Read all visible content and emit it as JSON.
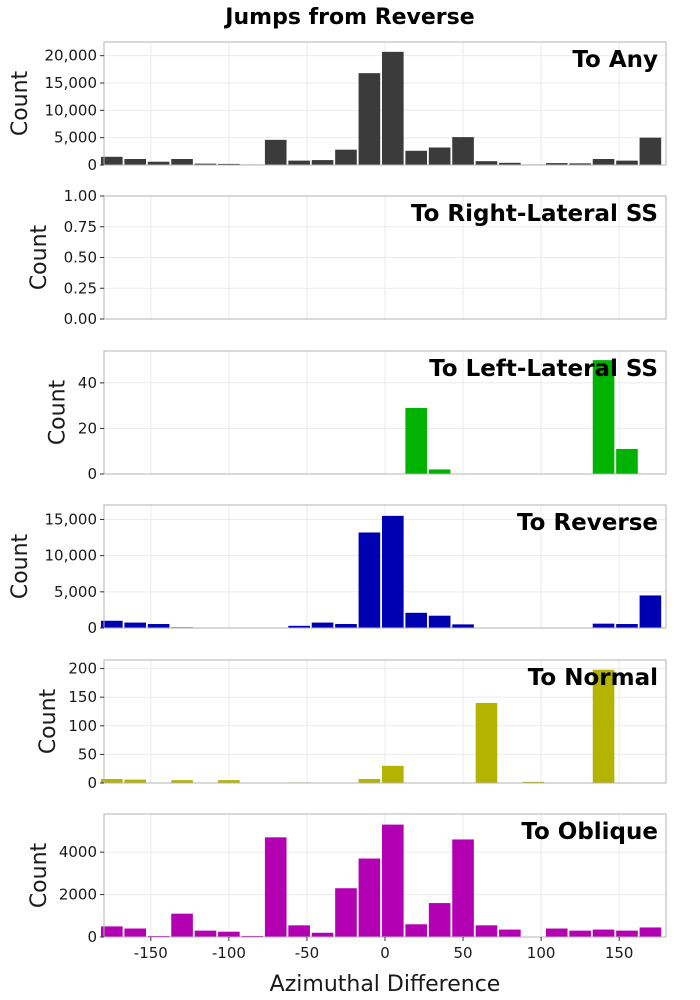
{
  "title": "Jumps from Reverse",
  "xlabel": "Azimuthal Difference",
  "chart_data": {
    "type": "bar",
    "xlim": [
      -180,
      180
    ],
    "x_ticks": [
      -150,
      -100,
      -50,
      0,
      50,
      100,
      150
    ],
    "x_tick_labels": [
      "-150",
      "-100",
      "-50",
      "0",
      "50",
      "100",
      "150"
    ],
    "bin_centers": [
      -175,
      -160,
      -145,
      -130,
      -115,
      -100,
      -85,
      -70,
      -55,
      -40,
      -25,
      -10,
      5,
      20,
      35,
      50,
      65,
      80,
      95,
      110,
      125,
      140,
      155,
      170
    ],
    "panels": [
      {
        "title": "To Any",
        "ylabel": "Count",
        "color": "#3b3b3b",
        "ylim": [
          0,
          22500
        ],
        "y_ticks": [
          0,
          5000,
          10000,
          15000,
          20000
        ],
        "y_tick_labels": [
          "0",
          "5,000",
          "10,000",
          "15,000",
          "20,000"
        ],
        "values": [
          1500,
          1100,
          600,
          1100,
          250,
          200,
          100,
          4600,
          800,
          900,
          2800,
          16800,
          20700,
          2600,
          3200,
          5100,
          700,
          400,
          100,
          350,
          300,
          1100,
          800,
          5000
        ]
      },
      {
        "title": "To Right-Lateral SS",
        "ylabel": "Count",
        "color": "#808080",
        "ylim": [
          0,
          1
        ],
        "y_ticks": [
          0,
          0.25,
          0.5,
          0.75,
          1
        ],
        "y_tick_labels": [
          "0.00",
          "0.25",
          "0.50",
          "0.75",
          "1.00"
        ],
        "values": [
          0,
          0,
          0,
          0,
          0,
          0,
          0,
          0,
          0,
          0,
          0,
          0,
          0,
          0,
          0,
          0,
          0,
          0,
          0,
          0,
          0,
          0,
          0,
          0
        ]
      },
      {
        "title": "To Left-Lateral SS",
        "ylabel": "Count",
        "color": "#00b300",
        "ylim": [
          0,
          54
        ],
        "y_ticks": [
          0,
          20,
          40
        ],
        "y_tick_labels": [
          "0",
          "20",
          "40"
        ],
        "values": [
          0,
          0,
          0,
          0,
          0,
          0,
          0,
          0,
          0,
          0,
          0,
          0,
          0,
          29,
          2,
          0,
          0,
          0,
          0,
          0,
          0,
          50,
          11,
          0
        ]
      },
      {
        "title": "To Reverse",
        "ylabel": "Count",
        "color": "#0000b3",
        "ylim": [
          0,
          17000
        ],
        "y_ticks": [
          0,
          5000,
          10000,
          15000
        ],
        "y_tick_labels": [
          "0",
          "5,000",
          "10,000",
          "15,000"
        ],
        "values": [
          1000,
          750,
          550,
          100,
          50,
          0,
          50,
          0,
          300,
          750,
          550,
          13200,
          15500,
          2100,
          1700,
          500,
          0,
          50,
          50,
          0,
          50,
          600,
          550,
          4500
        ]
      },
      {
        "title": "To Normal",
        "ylabel": "Count",
        "color": "#b3b300",
        "ylim": [
          0,
          215
        ],
        "y_ticks": [
          0,
          50,
          100,
          150,
          200
        ],
        "y_tick_labels": [
          "0",
          "50",
          "100",
          "150",
          "200"
        ],
        "values": [
          7,
          6,
          0,
          5,
          0,
          5,
          0,
          0,
          1,
          0,
          0,
          7,
          30,
          0,
          0,
          0,
          140,
          0,
          2,
          0,
          0,
          198,
          0,
          0
        ]
      },
      {
        "title": "To Oblique",
        "ylabel": "Count",
        "color": "#b300b3",
        "ylim": [
          0,
          5800
        ],
        "y_ticks": [
          0,
          2000,
          4000
        ],
        "y_tick_labels": [
          "0",
          "2000",
          "4000"
        ],
        "values": [
          500,
          400,
          50,
          1100,
          300,
          250,
          50,
          4700,
          550,
          200,
          2300,
          3700,
          5300,
          600,
          1600,
          4600,
          550,
          350,
          0,
          400,
          300,
          350,
          300,
          450
        ]
      }
    ]
  }
}
